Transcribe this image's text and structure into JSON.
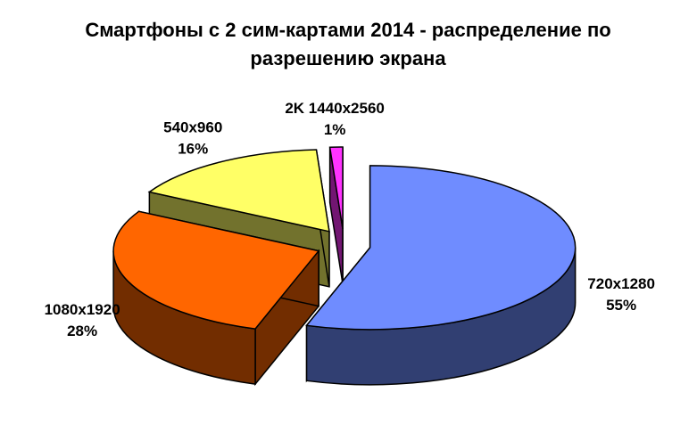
{
  "chart_data": {
    "type": "pie3d",
    "title": "Смартфоны с 2 сим-картами 2014 - распределение по разрешению экрана",
    "categories": [
      "720x1280",
      "1080x1920",
      "540x960",
      "2K 1440x2560"
    ],
    "values": [
      55,
      28,
      16,
      1
    ],
    "value_labels": [
      "55%",
      "28%",
      "16%",
      "1%"
    ],
    "colors": [
      "#6f8cff",
      "#ff6600",
      "#ffff66",
      "#ff33ff"
    ]
  }
}
